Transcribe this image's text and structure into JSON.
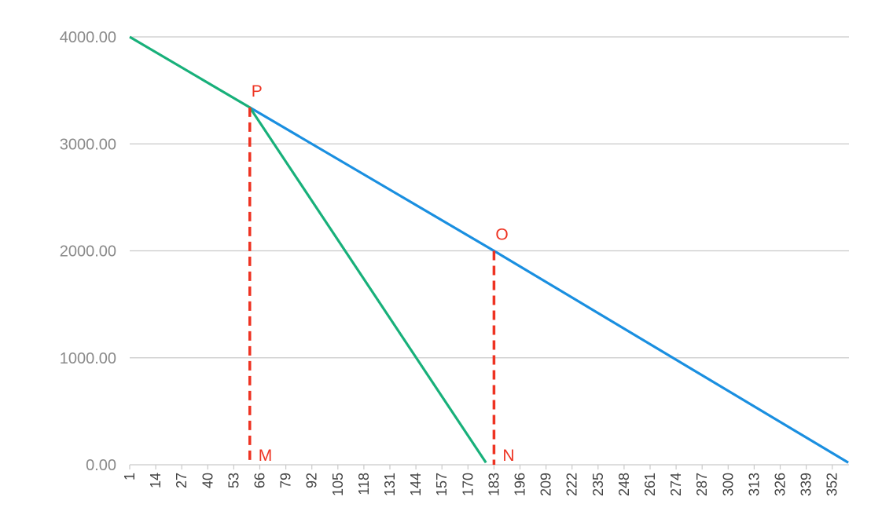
{
  "chart_data": {
    "type": "line",
    "title": "",
    "xlabel": "",
    "ylabel": "",
    "xlim": [
      1,
      360
    ],
    "ylim": [
      0,
      4000
    ],
    "grid": true,
    "legend": "none",
    "y_ticks": [
      {
        "value": 0,
        "label": "0.00"
      },
      {
        "value": 1000,
        "label": "1000.00"
      },
      {
        "value": 2000,
        "label": "2000.00"
      },
      {
        "value": 3000,
        "label": "3000.00"
      },
      {
        "value": 4000,
        "label": "4000.00"
      }
    ],
    "x_ticks": [
      "1",
      "14",
      "27",
      "40",
      "53",
      "66",
      "79",
      "92",
      "105",
      "118",
      "131",
      "144",
      "157",
      "170",
      "183",
      "196",
      "209",
      "222",
      "235",
      "248",
      "261",
      "274",
      "287",
      "300",
      "313",
      "326",
      "339",
      "352"
    ],
    "x_tick_start": 1,
    "x_tick_step": 13,
    "series": [
      {
        "color": "#1a8fe0",
        "points": [
          [
            61,
            3340
          ],
          [
            183,
            2000
          ],
          [
            360,
            20
          ]
        ]
      },
      {
        "color": "#18b07a",
        "points": [
          [
            1,
            4000
          ],
          [
            61,
            3340
          ],
          [
            179,
            20
          ]
        ]
      }
    ],
    "annotations": {
      "color": "#ee3322",
      "dashed_lines": [
        {
          "x": 61,
          "y_top": 3340
        },
        {
          "x": 183,
          "y_top": 2000
        }
      ],
      "points": [
        {
          "label": "P",
          "x": 61,
          "y": 3340
        },
        {
          "label": "O",
          "x": 183,
          "y": 2000
        },
        {
          "label": "M",
          "x": 61,
          "y": 0
        },
        {
          "label": "N",
          "x": 183,
          "y": 0
        }
      ]
    }
  }
}
